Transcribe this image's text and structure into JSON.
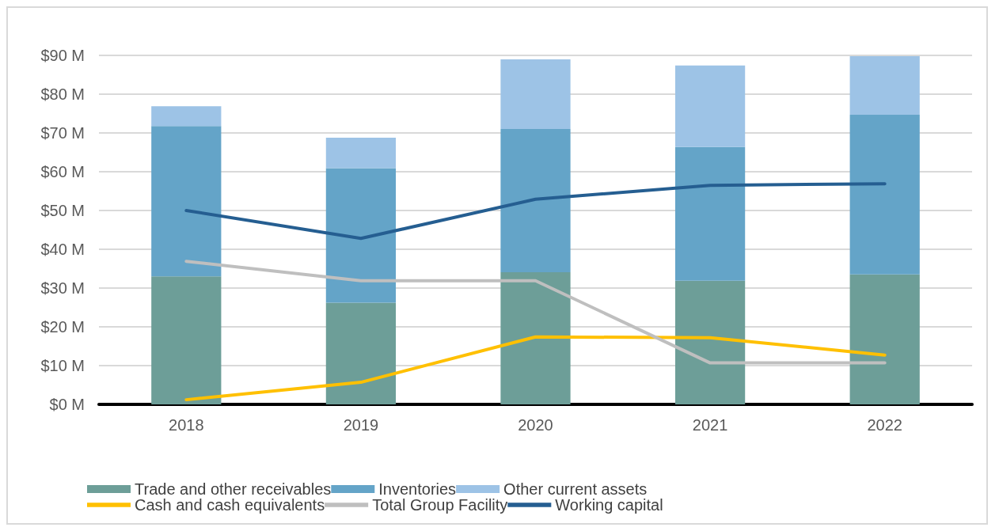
{
  "chart_data": {
    "type": "bar",
    "stacked": true,
    "categories": [
      "2018",
      "2019",
      "2020",
      "2021",
      "2022"
    ],
    "series": [
      {
        "name": "Trade and other receivables",
        "color": "#6d9e98",
        "values": [
          33,
          26.2,
          34.1,
          31.9,
          33.5
        ]
      },
      {
        "name": "Inventories",
        "color": "#64a4c8",
        "values": [
          38.8,
          34.7,
          36.9,
          34.5,
          41.2
        ]
      },
      {
        "name": "Other current assets",
        "color": "#9dc3e6",
        "values": [
          5.1,
          7.9,
          18,
          21,
          15.1
        ]
      },
      {
        "name": "Cash and cash equivalents",
        "type": "line",
        "color": "#ffc000",
        "values": [
          1.2,
          5.7,
          17.4,
          17.2,
          12.7
        ]
      },
      {
        "name": "Total Group Facility",
        "type": "line",
        "color": "#bfbfbf",
        "values": [
          36.9,
          31.9,
          31.9,
          10.7,
          10.7
        ]
      },
      {
        "name": "Working capital",
        "type": "line",
        "color": "#255e91",
        "values": [
          50,
          42.8,
          52.9,
          56.5,
          56.9
        ]
      }
    ],
    "ylim": [
      0,
      90
    ],
    "yticks": [
      {
        "value": 0,
        "label": "$0 M"
      },
      {
        "value": 10,
        "label": "$10 M"
      },
      {
        "value": 20,
        "label": "$20 M"
      },
      {
        "value": 30,
        "label": "$30 M"
      },
      {
        "value": 40,
        "label": "$40 M"
      },
      {
        "value": 50,
        "label": "$50 M"
      },
      {
        "value": 60,
        "label": "$60 M"
      },
      {
        "value": 70,
        "label": "$70 M"
      },
      {
        "value": 80,
        "label": "$80 M"
      },
      {
        "value": 90,
        "label": "$90 M"
      }
    ],
    "grid": "y",
    "legend": "bottom",
    "marker": "none",
    "line_style": "solid"
  }
}
